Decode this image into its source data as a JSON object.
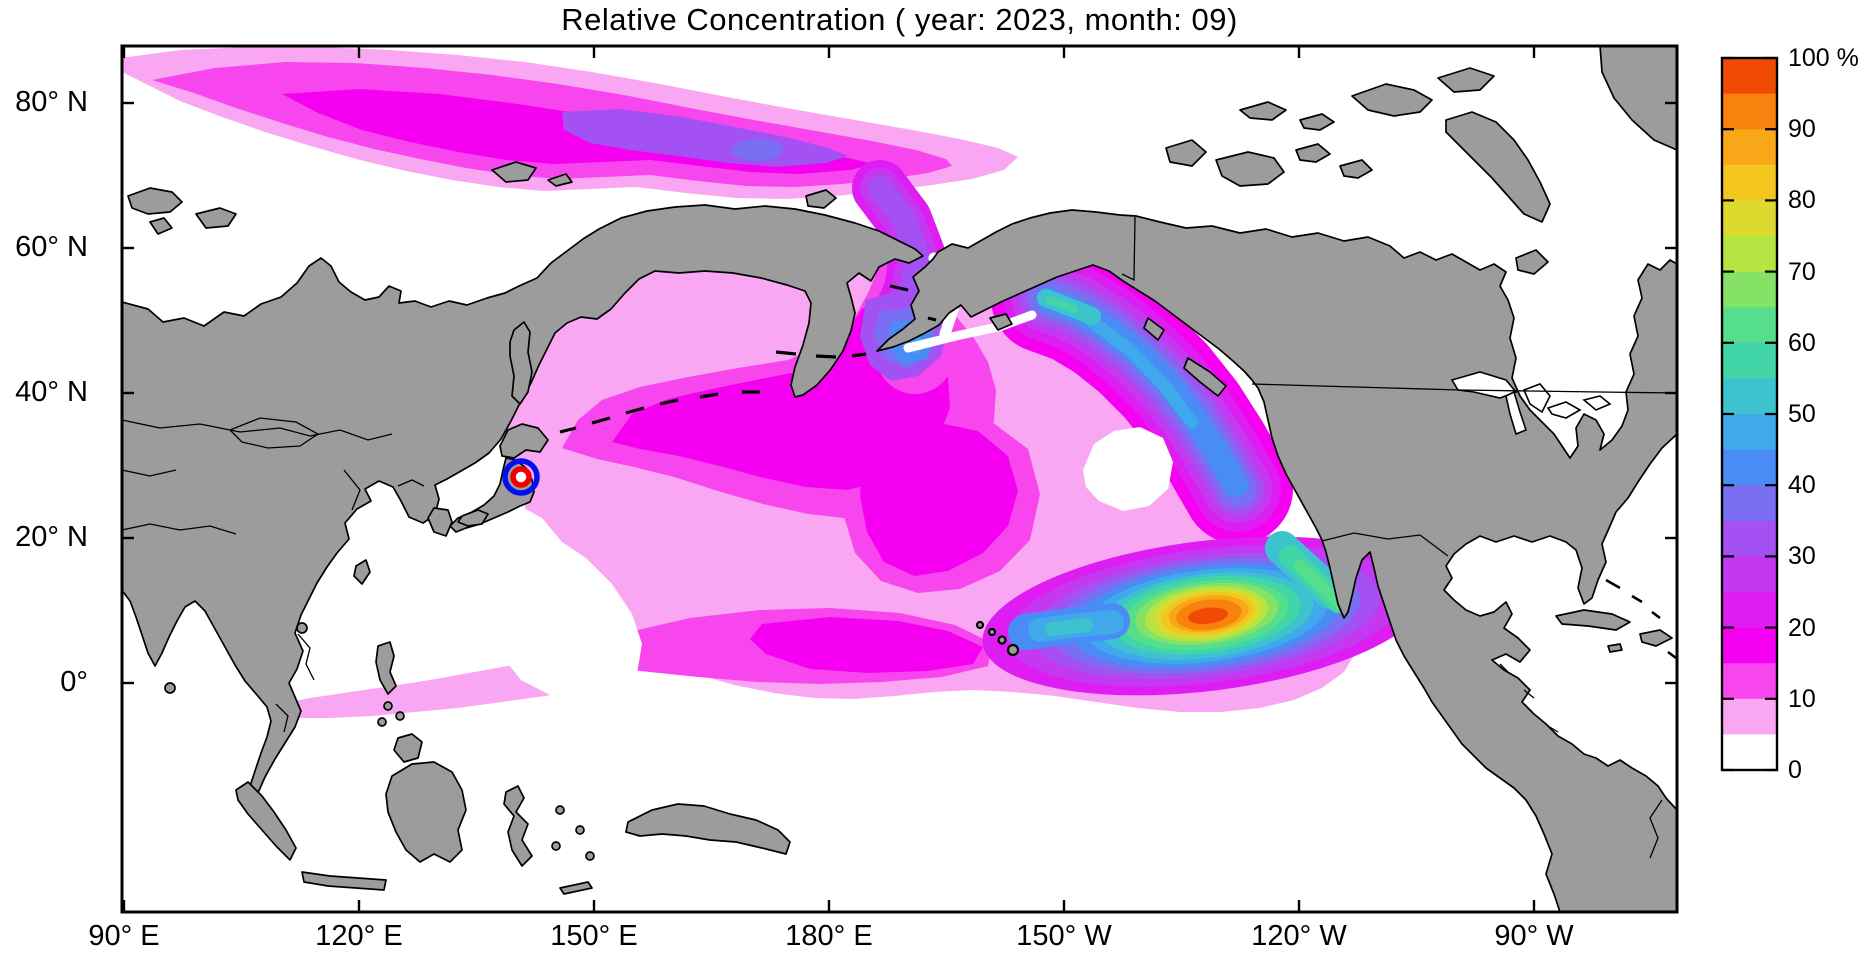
{
  "title": "Relative Concentration ( year: 2023, month: 09)",
  "axes": {
    "x_labels": [
      "90° E",
      "120° E",
      "150° E",
      "180° E",
      "150° W",
      "120° W",
      "90° W"
    ],
    "y_labels": [
      "80° N",
      "60° N",
      "40° N",
      "20° N",
      "0°"
    ]
  },
  "colorbar": {
    "unit": "%",
    "min": 0,
    "max": 100,
    "labels": [
      "100 %",
      "90",
      "80",
      "70",
      "60",
      "50",
      "40",
      "30",
      "20",
      "10",
      "0"
    ],
    "tick_values": [
      100,
      90,
      80,
      70,
      60,
      50,
      40,
      30,
      20,
      10,
      0
    ],
    "segments": [
      {
        "from": 95,
        "to": 100,
        "color": "#F04A05"
      },
      {
        "from": 90,
        "to": 95,
        "color": "#F8820D"
      },
      {
        "from": 85,
        "to": 90,
        "color": "#F7A718"
      },
      {
        "from": 80,
        "to": 85,
        "color": "#F2C61E"
      },
      {
        "from": 75,
        "to": 80,
        "color": "#DCD92F"
      },
      {
        "from": 70,
        "to": 75,
        "color": "#B6E443"
      },
      {
        "from": 65,
        "to": 70,
        "color": "#86E266"
      },
      {
        "from": 60,
        "to": 65,
        "color": "#55DE8C"
      },
      {
        "from": 55,
        "to": 60,
        "color": "#41D5A8"
      },
      {
        "from": 50,
        "to": 55,
        "color": "#3CC3CE"
      },
      {
        "from": 45,
        "to": 50,
        "color": "#3FA9EC"
      },
      {
        "from": 40,
        "to": 45,
        "color": "#4A8CF5"
      },
      {
        "from": 35,
        "to": 40,
        "color": "#7A6FF2"
      },
      {
        "from": 30,
        "to": 35,
        "color": "#A351F2"
      },
      {
        "from": 25,
        "to": 30,
        "color": "#C438F2"
      },
      {
        "from": 20,
        "to": 25,
        "color": "#DE1DF2"
      },
      {
        "from": 15,
        "to": 20,
        "color": "#F500F0"
      },
      {
        "from": 10,
        "to": 15,
        "color": "#F846EE"
      },
      {
        "from": 5,
        "to": 10,
        "color": "#F9A7F2"
      },
      {
        "from": 0,
        "to": 5,
        "color": "#FFFFFF"
      }
    ]
  },
  "map_colors": {
    "land": "#9C9C9C",
    "coastline": "#000000",
    "ocean": "#FFFFFF",
    "marker_outer_ring": "#0011EE",
    "marker_inner_ring": "#EE0000"
  },
  "chart_data": {
    "type": "heatmap",
    "title": "Relative Concentration ( year: 2023, month: 09)",
    "units": "%",
    "region": "North Pacific Ocean (90°E to 90°W, ~30°S to ~88°N)",
    "legend_position": "right colorbar, 0-100 % in 5 % color steps, labeled every 10 %",
    "x_ticks": [
      "90° E",
      "120° E",
      "150° E",
      "180° E",
      "150° W",
      "120° W",
      "90° W"
    ],
    "y_ticks": [
      "80° N",
      "60° N",
      "40° N",
      "20° N",
      "0°"
    ],
    "features": [
      {
        "name": "release-point-marker",
        "symbol": "red ring inside blue ring",
        "location": "off the east coast of Honshu, Japan (Fukushima area, ~141°E 38°N)"
      },
      {
        "name": "concentration-maximum",
        "value_percent": "95-100",
        "location": "subtropical eastern North Pacific, southwest of the Baja California peninsula, surrounded by concentric orange/yellow/green/cyan/blue rings"
      },
      {
        "name": "north-american-coastal-band",
        "value_percent": "30-55",
        "location": "along the west coast from the Gulf of Alaska down to Baja California, cyan/teal near the coast"
      },
      {
        "name": "bering-plume",
        "value_percent": "20-45",
        "location": "Bering Sea and through the Bering Strait, blue core in the Bering Sea"
      },
      {
        "name": "arctic-band",
        "value_percent": "5-40",
        "location": "band along the Siberian Arctic coast from 90°E to ~170°W, purple core near 150°E-180°"
      },
      {
        "name": "northwest-pacific-patch",
        "value_percent": "10-20",
        "location": "east of the Kuril Islands and Kamchatka with a lighter center"
      },
      {
        "name": "subtropical-band",
        "value_percent": "10-20",
        "location": "zonal magenta band ~15-30°N from ~155°E to the hotspot"
      },
      {
        "name": "gyre-low-patch",
        "value_percent": "0-5",
        "location": "white patch in the eastern subtropical gyre (~135°W 33°N)"
      },
      {
        "name": "background-plume",
        "value_percent": "5-10",
        "location": "pale pink covering most of the North Pacific and a tail toward the Philippine Sea"
      }
    ]
  }
}
